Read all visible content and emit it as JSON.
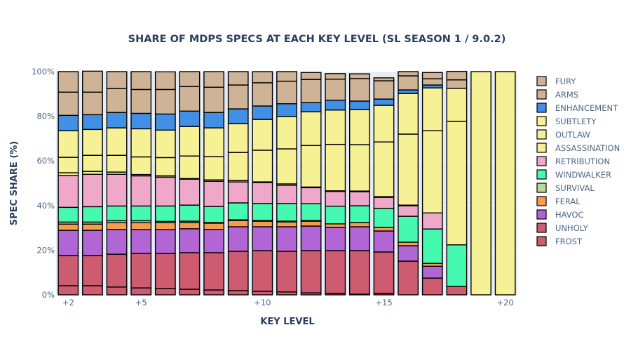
{
  "chart_data": {
    "type": "bar",
    "barmode": "stack",
    "title": "SHARE OF MDPS SPECS AT EACH KEY LEVEL (SL SEASON 1 / 9.0.2)",
    "xlabel": "KEY LEVEL",
    "ylabel": "SPEC SHARE (%)",
    "ylim": [
      0,
      100
    ],
    "y_ticks": [
      "0%",
      "20%",
      "40%",
      "60%",
      "80%",
      "100%"
    ],
    "y_tick_values": [
      0,
      20,
      40,
      60,
      80,
      100
    ],
    "x": [
      2,
      3,
      4,
      5,
      6,
      7,
      8,
      9,
      10,
      11,
      12,
      13,
      14,
      15,
      16,
      17,
      18,
      19,
      20
    ],
    "x_tick_labels": [
      {
        "x": 2,
        "label": "+2"
      },
      {
        "x": 5,
        "label": "+5"
      },
      {
        "x": 10,
        "label": "+10"
      },
      {
        "x": 15,
        "label": "+15"
      },
      {
        "x": 20,
        "label": "+20"
      }
    ],
    "grid": true,
    "legend_position": "right",
    "series": [
      {
        "name": "FROST",
        "color": "#cd5c70",
        "values": [
          4.1,
          4.1,
          3.5,
          3.1,
          2.8,
          2.5,
          2.2,
          1.9,
          1.6,
          1.3,
          0.9,
          0.6,
          0.3,
          0.6,
          0,
          0,
          0,
          0,
          0
        ]
      },
      {
        "name": "UNHOLY",
        "color": "#cd5c70",
        "values": [
          13.5,
          13.5,
          14.7,
          15.4,
          15.7,
          16.4,
          16.7,
          17.6,
          18.2,
          18.2,
          18.9,
          19.2,
          19.5,
          18.6,
          15.1,
          7.5,
          3.8,
          0,
          0
        ]
      },
      {
        "name": "HAVOC",
        "color": "#b265d5",
        "values": [
          11.3,
          11.3,
          11.0,
          10.7,
          10.7,
          10.7,
          10.4,
          11.0,
          10.7,
          11.0,
          11.0,
          10.4,
          10.7,
          9.4,
          6.9,
          5.3,
          0,
          0,
          0
        ]
      },
      {
        "name": "FERAL",
        "color": "#f99b4e",
        "values": [
          2.8,
          2.8,
          3.1,
          3.1,
          3.1,
          2.8,
          2.8,
          2.8,
          2.5,
          2.2,
          2.2,
          1.6,
          1.9,
          1.6,
          1.6,
          1.3,
          0,
          0,
          0
        ]
      },
      {
        "name": "SURVIVAL",
        "color": "#b9d99a",
        "values": [
          0.9,
          0.9,
          0.9,
          0.9,
          0.6,
          0.6,
          0.3,
          0.3,
          0.3,
          0.3,
          0.3,
          0.0,
          0.0,
          0.0,
          0,
          0,
          0,
          0,
          0
        ]
      },
      {
        "name": "WINDWALKER",
        "color": "#45f9b0",
        "values": [
          6.6,
          6.9,
          6.6,
          6.6,
          6.9,
          7.2,
          7.2,
          7.6,
          7.6,
          7.9,
          7.5,
          7.9,
          7.5,
          8.5,
          11.6,
          15.4,
          18.6,
          0,
          0
        ]
      },
      {
        "name": "RETRIBUTION",
        "color": "#f0a8ca",
        "values": [
          14.2,
          14.5,
          14.2,
          13.5,
          12.9,
          11.6,
          11.3,
          9.4,
          9.4,
          8.2,
          7.2,
          6.6,
          6.3,
          5.0,
          4.7,
          7.2,
          0,
          0,
          0
        ]
      },
      {
        "name": "ASSASSINATION",
        "color": "#f6f194",
        "values": [
          1.3,
          1.3,
          1.0,
          0.6,
          0.6,
          0.3,
          0.6,
          0.6,
          0.3,
          0.6,
          0.3,
          0.3,
          0.3,
          0.3,
          0.3,
          0,
          0,
          0,
          0
        ]
      },
      {
        "name": "OUTLAW",
        "color": "#f6f194",
        "values": [
          6.9,
          7.2,
          7.5,
          7.9,
          8.2,
          10.1,
          10.4,
          12.6,
          14.2,
          15.7,
          18.6,
          20.8,
          20.8,
          24.5,
          31.8,
          36.8,
          55.3,
          100,
          100
        ]
      },
      {
        "name": "SUBTLETY",
        "color": "#f6f194",
        "values": [
          11.9,
          11.6,
          12.3,
          12.6,
          12.3,
          13.2,
          12.9,
          12.9,
          13.8,
          14.5,
          15.1,
          15.4,
          15.7,
          16.4,
          18.2,
          19.2,
          14.8,
          0,
          0
        ]
      },
      {
        "name": "ENHANCEMENT",
        "color": "#4190e5",
        "values": [
          6.9,
          6.6,
          6.9,
          6.9,
          7.2,
          6.9,
          6.9,
          6.6,
          6.0,
          5.7,
          4.1,
          4.4,
          3.8,
          2.8,
          1.6,
          1.3,
          0,
          0,
          0
        ]
      },
      {
        "name": "ARMS",
        "color": "#cfb396",
        "values": [
          10.4,
          10.1,
          10.7,
          10.7,
          11.0,
          11.0,
          11.3,
          10.7,
          10.4,
          10.1,
          10.4,
          9.4,
          10.1,
          8.2,
          6.3,
          2.8,
          3.8,
          0,
          0
        ]
      },
      {
        "name": "FURY",
        "color": "#cfb396",
        "values": [
          9.2,
          9.4,
          7.6,
          8.0,
          7.9,
          6.7,
          7.0,
          6.0,
          5.0,
          4.3,
          3.1,
          2.5,
          2.1,
          1.3,
          1.9,
          2.8,
          3.8,
          0,
          0
        ]
      }
    ]
  },
  "legend": {
    "items": [
      "FURY",
      "ARMS",
      "ENHANCEMENT",
      "SUBTLETY",
      "OUTLAW",
      "ASSASSINATION",
      "RETRIBUTION",
      "WINDWALKER",
      "SURVIVAL",
      "FERAL",
      "HAVOC",
      "UNHOLY",
      "FROST"
    ]
  },
  "colors": {
    "plot_background": "#e5ecf6",
    "gridline": "#ffffff",
    "text": "#2a3f5f",
    "tick_text": "#506784"
  }
}
